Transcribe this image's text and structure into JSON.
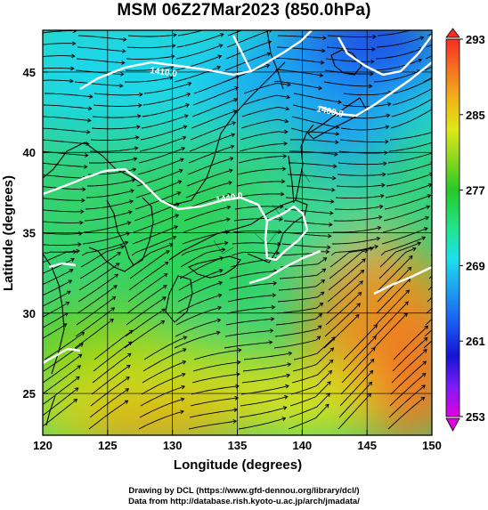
{
  "title": "MSM 06Z27Mar2023 (850.0hPa)",
  "xaxis": {
    "label": "Longitude (degrees)",
    "range": [
      120,
      150
    ],
    "ticks": [
      "120",
      "125",
      "130",
      "135",
      "140",
      "145",
      "150"
    ]
  },
  "yaxis": {
    "label": "Latitude  (degrees)",
    "range": [
      22.4,
      47.6
    ],
    "ticks": [
      "25",
      "30",
      "35",
      "40",
      "45"
    ]
  },
  "colorbar": {
    "range": [
      253,
      293
    ],
    "ticks": [
      "253",
      "261",
      "269",
      "277",
      "285",
      "293"
    ],
    "colors": [
      "#e100e1",
      "#7d1cf4",
      "#1414d2",
      "#1c5cf0",
      "#1eaaf0",
      "#1fe0ea",
      "#22e38c",
      "#27c928",
      "#8ad621",
      "#dfe81a",
      "#f0b318",
      "#f47321",
      "#f52f24"
    ]
  },
  "contours": {
    "labels": [
      "1410.0",
      "1400.0",
      "1440.0"
    ],
    "color": "#ffffff"
  },
  "footer": {
    "line1": "Drawing by DCL (https://www.gfd-dennou.org/library/dcl/)",
    "line2": "Data from http://database.rish.kyoto-u.ac.jp/arch/jmadata/"
  }
}
